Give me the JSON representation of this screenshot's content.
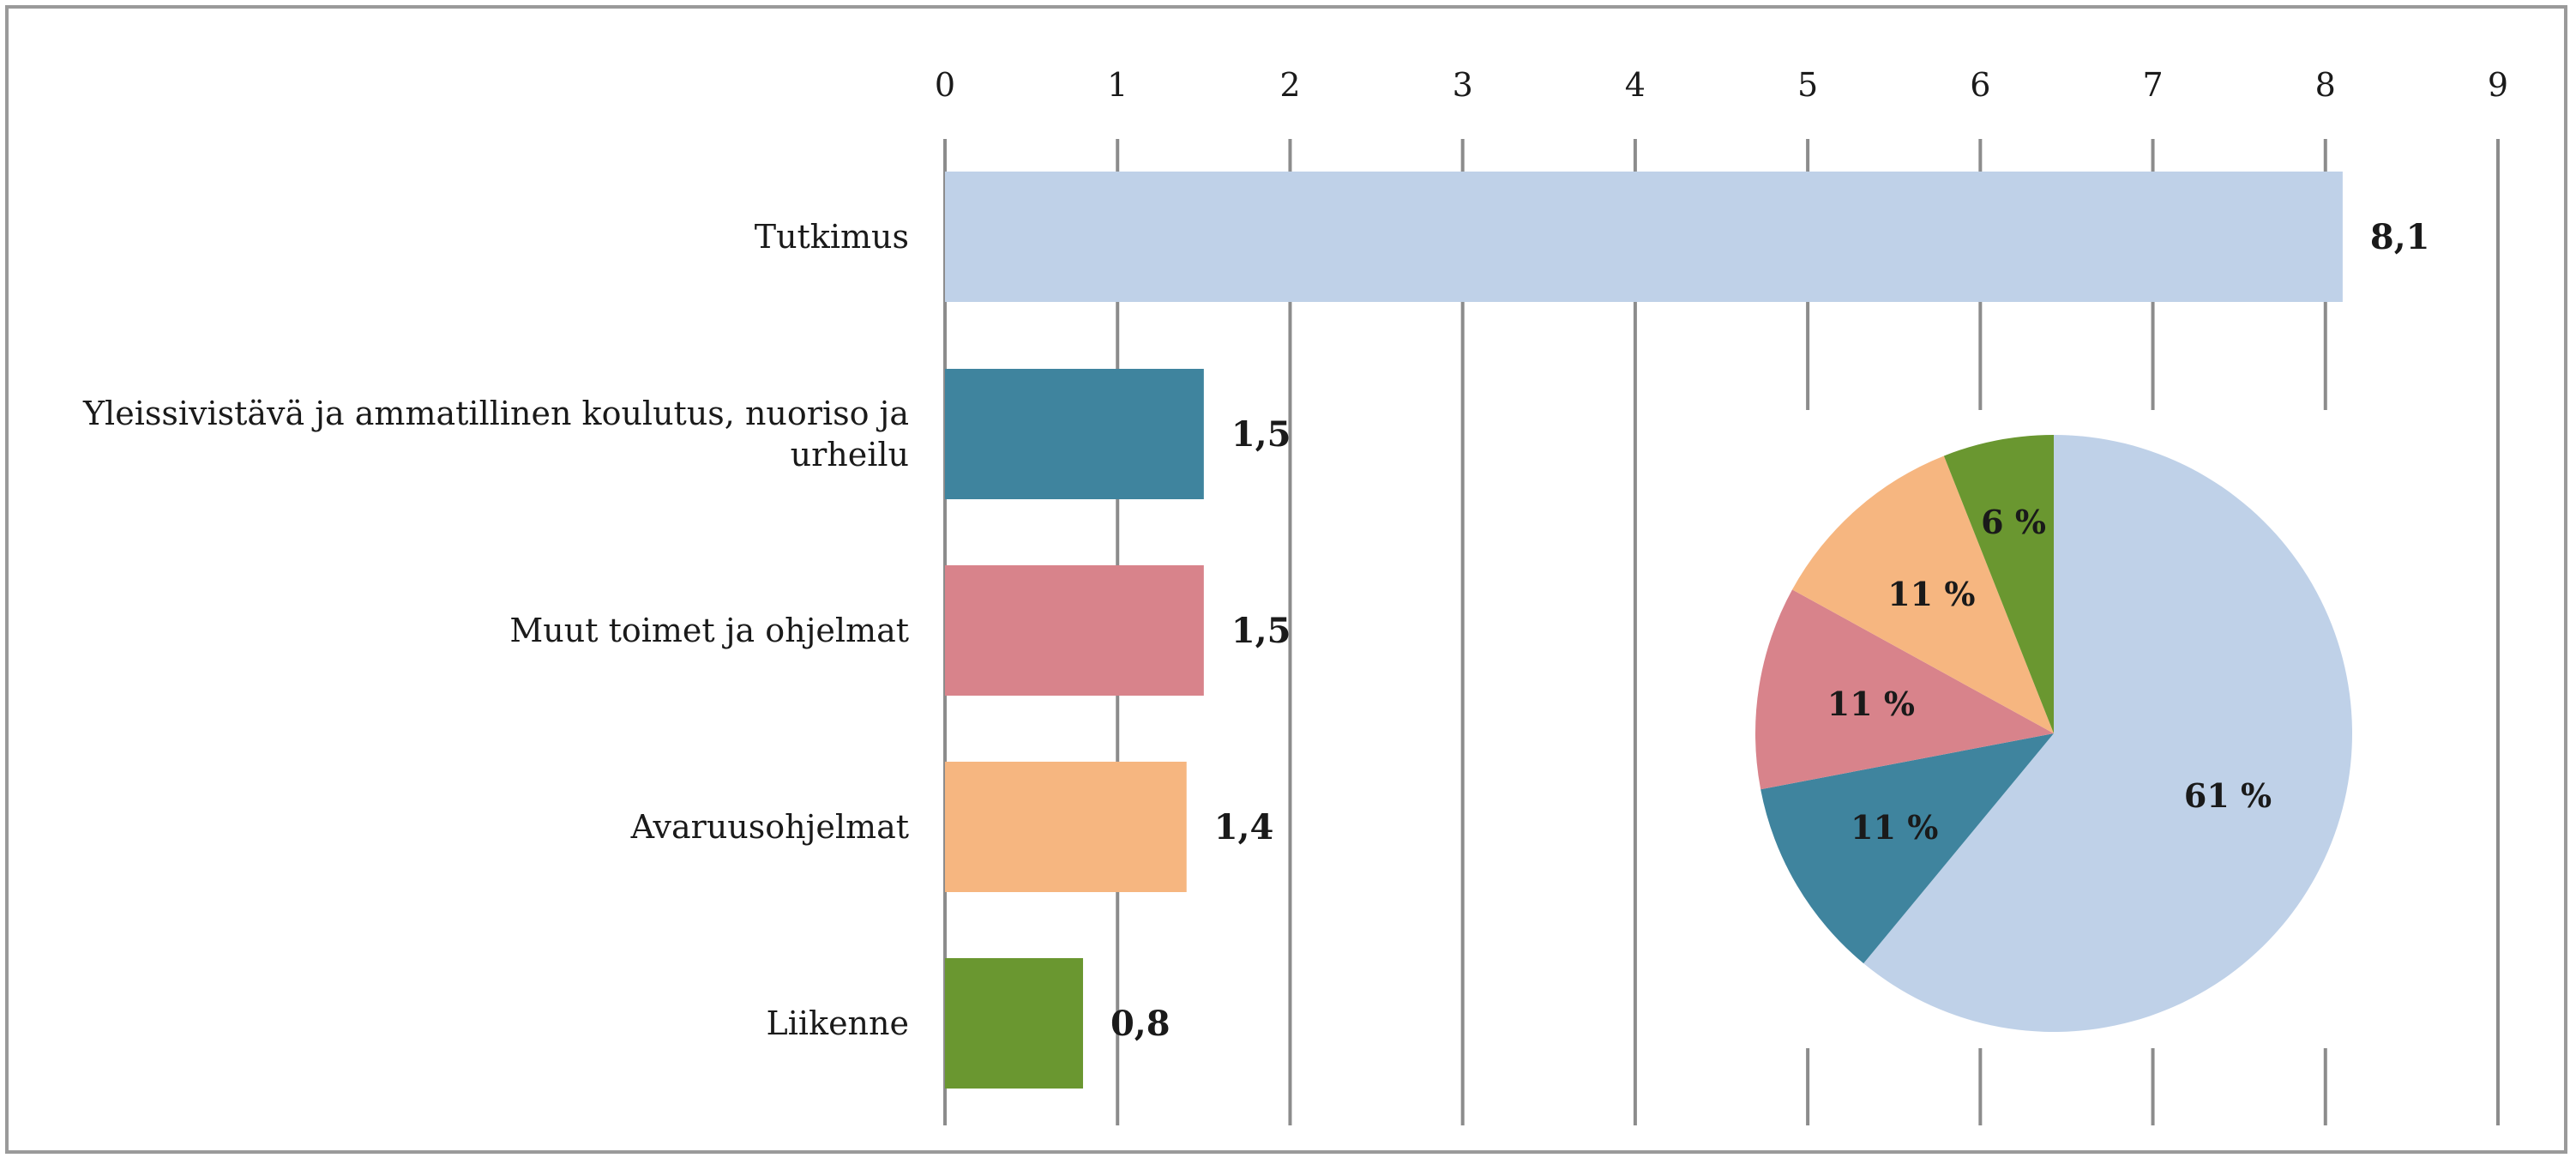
{
  "chart_data": {
    "type": "bar",
    "orientation": "horizontal",
    "title": "",
    "xlabel": "",
    "ylabel": "",
    "xlim": [
      0,
      9
    ],
    "ticks": [
      0,
      1,
      2,
      3,
      4,
      5,
      6,
      7,
      8,
      9
    ],
    "grid": true,
    "categories": [
      "Tutkimus",
      "Yleissivistävä ja ammatillinen koulutus, nuoriso ja urheilu",
      "Muut toimet ja ohjelmat",
      "Avaruusohjelmat",
      "Liikenne"
    ],
    "category_lines": [
      [
        "Tutkimus"
      ],
      [
        "Yleissivistävä ja ammatillinen koulutus, nuoriso ja",
        "urheilu"
      ],
      [
        "Muut toimet ja ohjelmat"
      ],
      [
        "Avaruusohjelmat"
      ],
      [
        "Liikenne"
      ]
    ],
    "values": [
      8.1,
      1.5,
      1.5,
      1.4,
      0.8
    ],
    "value_labels": [
      "8,1",
      "1,5",
      "1,5",
      "1,4",
      "0,8"
    ],
    "colors": [
      "#bfd1e8",
      "#3f849e",
      "#d8838b",
      "#f6b680",
      "#6a9730"
    ],
    "inset_pie": {
      "type": "pie",
      "slices": [
        {
          "category": "Tutkimus",
          "value": 61,
          "label": "61 %",
          "color": "#bfd1e8"
        },
        {
          "category": "Yleissivistävä ja ammatillinen koulutus, nuoriso ja urheilu",
          "value": 11,
          "label": "11 %",
          "color": "#3f849e"
        },
        {
          "category": "Muut toimet ja ohjelmat",
          "value": 11,
          "label": "11 %",
          "color": "#d8838b"
        },
        {
          "category": "Avaruusohjelmat",
          "value": 11,
          "label": "11 %",
          "color": "#f6b680"
        },
        {
          "category": "Liikenne",
          "value": 6,
          "label": "6 %",
          "color": "#6a9730"
        }
      ],
      "start": "12 o'clock",
      "direction": "clockwise"
    },
    "colors_grid": "#8c8c8c"
  }
}
